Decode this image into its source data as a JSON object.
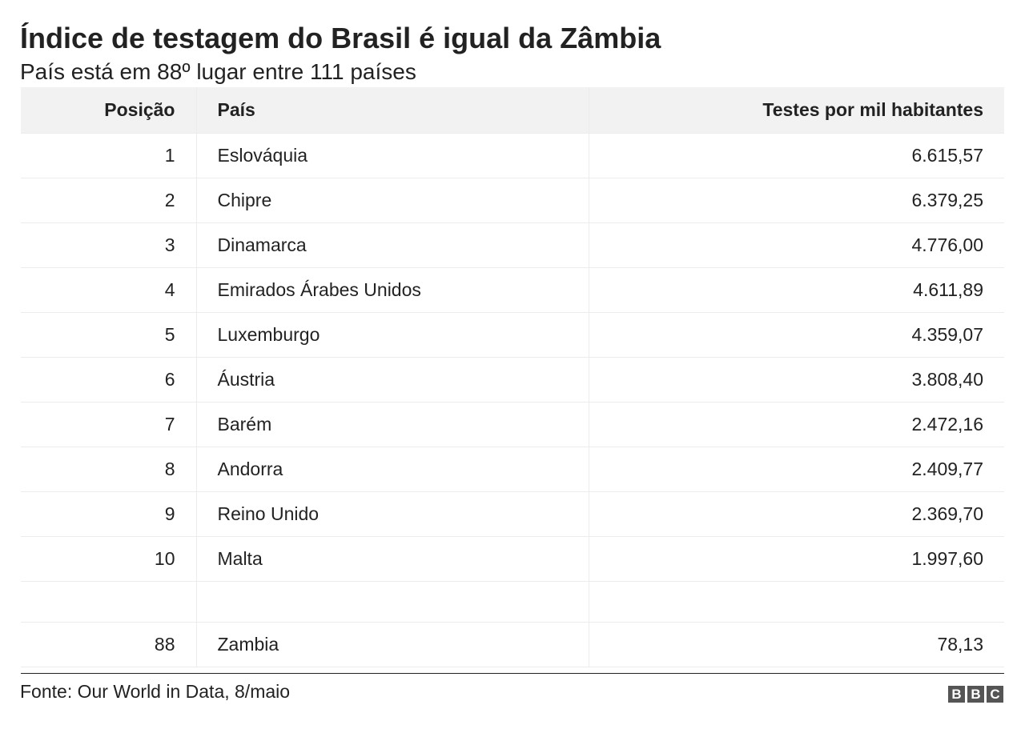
{
  "title": "Índice de testagem do Brasil é igual da Zâmbia",
  "subtitle": "País está em 88º lugar entre 111 países",
  "table": {
    "headers": [
      "Posição",
      "País",
      "Testes por mil habitantes"
    ],
    "rows": [
      {
        "pos": "1",
        "country": "Eslováquia",
        "value": "6.615,57"
      },
      {
        "pos": "2",
        "country": "Chipre",
        "value": "6.379,25"
      },
      {
        "pos": "3",
        "country": "Dinamarca",
        "value": "4.776,00"
      },
      {
        "pos": "4",
        "country": "Emirados Árabes Unidos",
        "value": "4.611,89"
      },
      {
        "pos": "5",
        "country": "Luxemburgo",
        "value": "4.359,07"
      },
      {
        "pos": "6",
        "country": "Áustria",
        "value": "3.808,40"
      },
      {
        "pos": "7",
        "country": "Barém",
        "value": "2.472,16"
      },
      {
        "pos": "8",
        "country": "Andorra",
        "value": "2.409,77"
      },
      {
        "pos": "9",
        "country": "Reino Unido",
        "value": "2.369,70"
      },
      {
        "pos": "10",
        "country": "Malta",
        "value": "1.997,60"
      },
      {
        "pos": "",
        "country": "",
        "value": ""
      },
      {
        "pos": "88",
        "country": "Zambia",
        "value": "78,13"
      }
    ]
  },
  "chart_data": {
    "type": "table",
    "columns": [
      "Posição",
      "País",
      "Testes por mil habitantes"
    ],
    "rows": [
      [
        1,
        "Eslováquia",
        6615.57
      ],
      [
        2,
        "Chipre",
        6379.25
      ],
      [
        3,
        "Dinamarca",
        4776.0
      ],
      [
        4,
        "Emirados Árabes Unidos",
        4611.89
      ],
      [
        5,
        "Luxemburgo",
        4359.07
      ],
      [
        6,
        "Áustria",
        3808.4
      ],
      [
        7,
        "Barém",
        2472.16
      ],
      [
        8,
        "Andorra",
        2409.77
      ],
      [
        9,
        "Reino Unido",
        2369.7
      ],
      [
        10,
        "Malta",
        1997.6
      ],
      [
        88,
        "Zambia",
        78.13
      ]
    ]
  },
  "footer": {
    "source": "Fonte: Our World in Data, 8/maio",
    "logo": [
      "B",
      "B",
      "C"
    ]
  },
  "colors": {
    "text": "#222222",
    "header_bg": "#f2f2f2",
    "grid": "#ececec",
    "logo_bg": "#555555"
  }
}
